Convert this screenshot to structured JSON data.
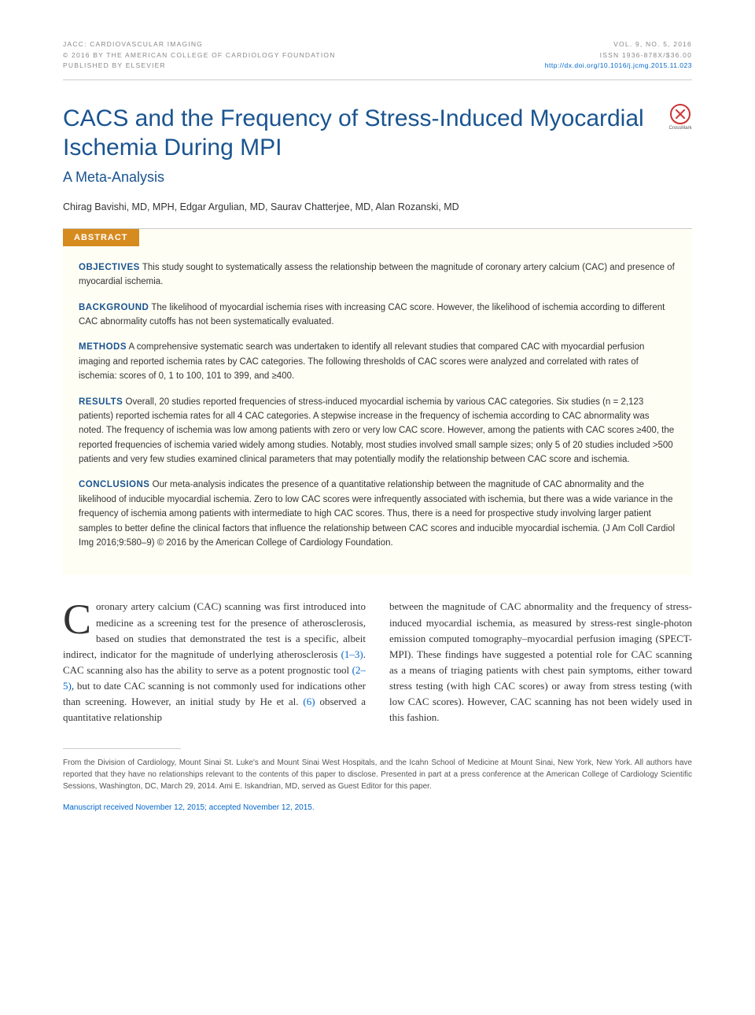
{
  "header": {
    "journal": "JACC: CARDIOVASCULAR IMAGING",
    "copyright": "© 2016 BY THE AMERICAN COLLEGE OF CARDIOLOGY FOUNDATION",
    "publisher": "PUBLISHED BY ELSEVIER",
    "volume": "VOL. 9, NO. 5, 2016",
    "issn": "ISSN 1936-878X/$36.00",
    "doi": "http://dx.doi.org/10.1016/j.jcmg.2015.11.023"
  },
  "title": "CACS and the Frequency of Stress-Induced Myocardial Ischemia During MPI",
  "subtitle": "A Meta-Analysis",
  "authors": "Chirag Bavishi, MD, MPH, Edgar Argulian, MD, Saurav Chatterjee, MD, Alan Rozanski, MD",
  "crossmark_label": "CrossMark",
  "abstract": {
    "label": "ABSTRACT",
    "objectives": {
      "heading": "OBJECTIVES",
      "text": " This study sought to systematically assess the relationship between the magnitude of coronary artery calcium (CAC) and presence of myocardial ischemia."
    },
    "background": {
      "heading": "BACKGROUND",
      "text": " The likelihood of myocardial ischemia rises with increasing CAC score. However, the likelihood of ischemia according to different CAC abnormality cutoffs has not been systematically evaluated."
    },
    "methods": {
      "heading": "METHODS",
      "text": " A comprehensive systematic search was undertaken to identify all relevant studies that compared CAC with myocardial perfusion imaging and reported ischemia rates by CAC categories. The following thresholds of CAC scores were analyzed and correlated with rates of ischemia: scores of 0, 1 to 100, 101 to 399, and ≥400."
    },
    "results": {
      "heading": "RESULTS",
      "text": " Overall, 20 studies reported frequencies of stress-induced myocardial ischemia by various CAC categories. Six studies (n = 2,123 patients) reported ischemia rates for all 4 CAC categories. A stepwise increase in the frequency of ischemia according to CAC abnormality was noted. The frequency of ischemia was low among patients with zero or very low CAC score. However, among the patients with CAC scores ≥400, the reported frequencies of ischemia varied widely among studies. Notably, most studies involved small sample sizes; only 5 of 20 studies included >500 patients and very few studies examined clinical parameters that may potentially modify the relationship between CAC score and ischemia."
    },
    "conclusions": {
      "heading": "CONCLUSIONS",
      "text": " Our meta-analysis indicates the presence of a quantitative relationship between the magnitude of CAC abnormality and the likelihood of inducible myocardial ischemia. Zero to low CAC scores were infrequently associated with ischemia, but there was a wide variance in the frequency of ischemia among patients with intermediate to high CAC scores. Thus, there is a need for prospective study involving larger patient samples to better define the clinical factors that influence the relationship between CAC scores and inducible myocardial ischemia. (J Am Coll Cardiol Img 2016;9:580–9) © 2016 by the American College of Cardiology Foundation."
    }
  },
  "body": {
    "col1_dropcap": "C",
    "col1_p1a": "oronary artery calcium (CAC) scanning was first introduced into medicine as a screening test for the presence of atherosclerosis, based on studies that demonstrated the test is a specific, albeit indirect, indicator for the magnitude of underlying atherosclerosis ",
    "col1_ref1": "(1–3)",
    "col1_p1b": ". CAC scanning also has the ability to serve as a potent prognostic tool ",
    "col1_ref2": "(2–5)",
    "col1_p1c": ", but to date CAC scanning is not commonly used for indications other than screening. However, an initial study by He et al. ",
    "col1_ref3": "(6)",
    "col1_p1d": " observed a quantitative relationship",
    "col2_p1": "between the magnitude of CAC abnormality and the frequency of stress-induced myocardial ischemia, as measured by stress-rest single-photon emission computed tomography–myocardial perfusion imaging (SPECT-MPI). These findings have suggested a potential role for CAC scanning as a means of triaging patients with chest pain symptoms, either toward stress testing (with high CAC scores) or away from stress testing (with low CAC scores). However, CAC scanning has not been widely used in this fashion."
  },
  "footer": {
    "affiliation": "From the Division of Cardiology, Mount Sinai St. Luke's and Mount Sinai West Hospitals, and the Icahn School of Medicine at Mount Sinai, New York, New York. All authors have reported that they have no relationships relevant to the contents of this paper to disclose. Presented in part at a press conference at the American College of Cardiology Scientific Sessions, Washington, DC, March 29, 2014. Ami E. Iskandrian, MD, served as Guest Editor for this paper.",
    "manuscript": "Manuscript received November 12, 2015; accepted November 12, 2015."
  }
}
